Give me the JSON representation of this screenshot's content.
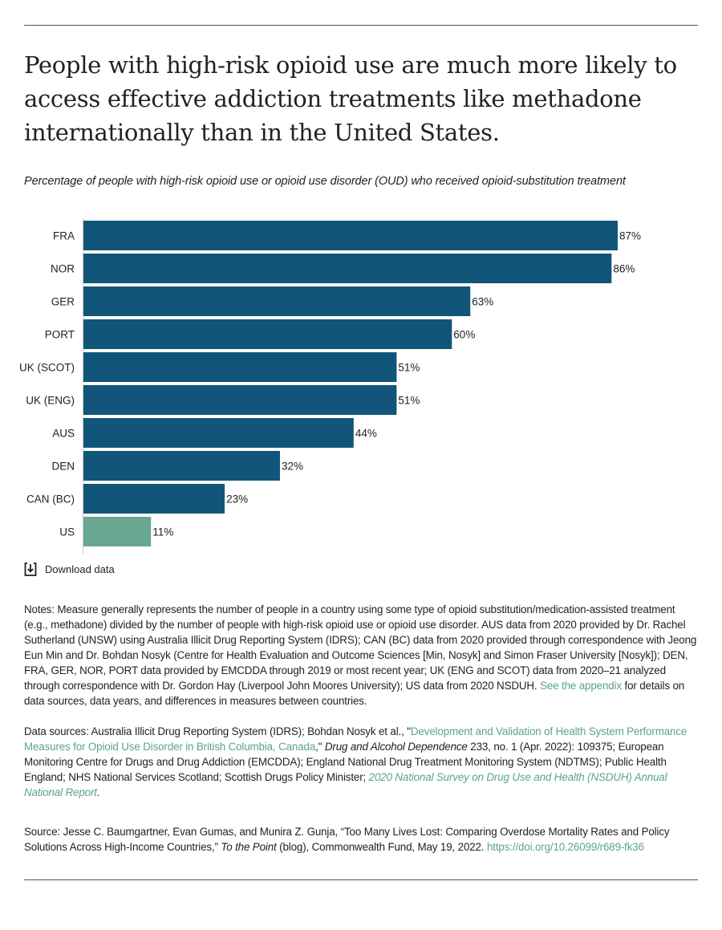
{
  "title": "People with high-risk opioid use are much more likely to access effective addiction treatments like methadone internationally than in the United States.",
  "subtitle": "Percentage of people with high-risk opioid use or opioid use disorder (OUD) who received opioid-substitution treatment",
  "download_label": "Download data",
  "colors": {
    "bar": "#12557a",
    "highlight": "#68a890",
    "link": "#5aa48a"
  },
  "chart_data": {
    "type": "bar",
    "orientation": "horizontal",
    "categories": [
      "FRA",
      "NOR",
      "GER",
      "PORT",
      "UK (SCOT)",
      "UK (ENG)",
      "AUS",
      "DEN",
      "CAN (BC)",
      "US"
    ],
    "values": [
      87,
      86,
      63,
      60,
      51,
      51,
      44,
      32,
      23,
      11
    ],
    "labels": [
      "87%",
      "86%",
      "63%",
      "60%",
      "51%",
      "51%",
      "44%",
      "32%",
      "23%",
      "11%"
    ],
    "highlight": "US",
    "xlim": [
      0,
      100
    ],
    "grid": false
  },
  "notes": [
    {
      "text": "Notes: Measure generally represents the number of people in a country using some type of opioid substitution/medication-assisted treatment (e.g., methadone) divided by the number of people with high-risk opioid use or opioid use disorder. AUS data from 2020 provided by Dr. Rachel Sutherland (UNSW) using Australia Illicit Drug Reporting System (IDRS); CAN (BC) data from 2020 provided through correspondence with Jeong Eun Min and Dr. Bohdan Nosyk (Centre for Health Evaluation and Outcome Sciences [Min, Nosyk] and Simon Fraser University [Nosyk]); DEN, FRA, GER, NOR, PORT data provided by EMCDDA through 2019 or most recent year; UK (ENG and SCOT) data from 2020–21 analyzed through correspondence with Dr. Gordon Hay (Liverpool John Moores University); US data from 2020 NSDUH. "
    },
    {
      "text": "See the appendix",
      "link": true
    },
    {
      "text": " for details on data sources, data years, and differences in measures between countries."
    }
  ],
  "data_sources": [
    {
      "text": "Data sources: Australia Illicit Drug Reporting System (IDRS); Bohdan Nosyk et al., \""
    },
    {
      "text": "Development and Validation of Health System Performance Measures for Opioid Use Disorder in British Columbia, Canada",
      "link": true
    },
    {
      "text": ",\" "
    },
    {
      "text": "Drug and Alcohol Dependence",
      "italic": true
    },
    {
      "text": " 233, no. 1 (Apr. 2022): 109375; European Monitoring Centre for Drugs and Drug Addiction (EMCDDA); England National Drug Treatment Monitoring System (NDTMS); Public Health England; NHS National Services Scotland; Scottish Drugs Policy Minister; "
    },
    {
      "text": "2020 National Survey on Drug Use and Health (NSDUH) Annual National Report",
      "link": true,
      "italic": true
    },
    {
      "text": "."
    }
  ],
  "source": [
    {
      "text": "Source: Jesse C. Baumgartner, Evan Gumas, and Munira Z. Gunja, “Too Many Lives Lost: Comparing Overdose Mortality Rates and Policy Solutions Across High-Income Countries,” "
    },
    {
      "text": "To the Point",
      "italic": true
    },
    {
      "text": " (blog), Commonwealth Fund, May 19, 2022. "
    },
    {
      "text": "https://doi.org/10.26099/r689-fk36",
      "link": true
    }
  ]
}
